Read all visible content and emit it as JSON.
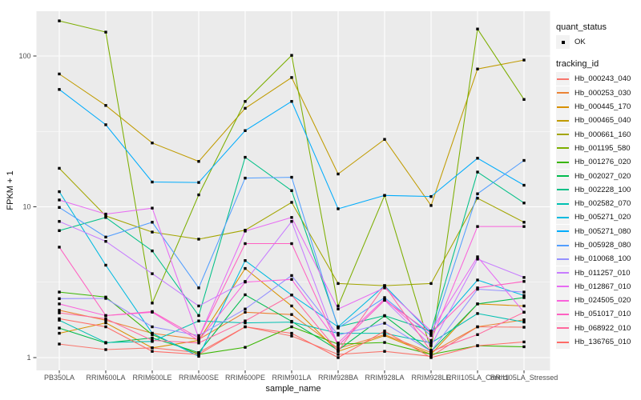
{
  "figure": {
    "background": "#FFFFFF",
    "panel_bg": "#EBEBEB",
    "grid_color": "#FFFFFF",
    "tick_color": "#333333",
    "axis_text_color": "#4D4D4D"
  },
  "legend": {
    "quant_status": {
      "title": "quant_status",
      "items": [
        {
          "label": "OK"
        }
      ]
    },
    "tracking_id": {
      "title": "tracking_id"
    }
  },
  "chart_data": {
    "type": "line",
    "title": "",
    "xlabel": "sample_name",
    "ylabel": "FPKM + 1",
    "yscale": "log10",
    "ylim": [
      0.82,
      200
    ],
    "y_ticks": [
      1,
      10,
      100
    ],
    "y_minor": [
      3.1623,
      31.6228
    ],
    "grid": true,
    "legend_position": "right",
    "point_shape": "square",
    "point_color": "#000000",
    "quant_status_value": "OK",
    "x": [
      "PB350LA",
      "RRIM600LA",
      "RRIM600LE",
      "RRIM600SE",
      "RRIM600PE",
      "RRIM901LA",
      "RRIM928BA",
      "RRIM928LA",
      "RRIM928LE",
      "RRII105LA_Control",
      "RRII105LA_Stressed"
    ],
    "series": [
      {
        "name": "Hb_000243_040",
        "color": "#F8766D",
        "values": [
          1.23,
          1.13,
          1.16,
          1.08,
          1.6,
          1.39,
          1.05,
          1.1,
          1.02,
          1.6,
          1.59
        ]
      },
      {
        "name": "Hb_000253_030",
        "color": "#EB8335",
        "values": [
          2.06,
          1.77,
          1.45,
          1.32,
          2.0,
          1.93,
          1.15,
          1.42,
          1.08,
          1.6,
          1.78
        ]
      },
      {
        "name": "Hb_000445_170",
        "color": "#D89000",
        "values": [
          1.45,
          1.7,
          1.16,
          1.3,
          3.9,
          2.2,
          1.1,
          1.4,
          1.05,
          2.27,
          2.2
        ]
      },
      {
        "name": "Hb_000465_040",
        "color": "#C09B00",
        "values": [
          76,
          47,
          26.5,
          20,
          45,
          72,
          16.5,
          28,
          10.2,
          82,
          94
        ]
      },
      {
        "name": "Hb_000661_160",
        "color": "#A3A500",
        "values": [
          18,
          8.7,
          6.8,
          6.1,
          7.0,
          10.7,
          3.1,
          3.0,
          3.1,
          11.4,
          7.9
        ]
      },
      {
        "name": "Hb_001195_580",
        "color": "#7CAE00",
        "values": [
          171,
          144,
          2.3,
          12,
          50,
          101,
          2.2,
          11.9,
          1.12,
          151,
          51.5
        ]
      },
      {
        "name": "Hb_001276_020",
        "color": "#39B600",
        "values": [
          2.72,
          2.52,
          1.42,
          1.05,
          1.17,
          1.6,
          1.23,
          1.26,
          1.05,
          1.2,
          1.18
        ]
      },
      {
        "name": "Hb_002027_020",
        "color": "#00BB4E",
        "values": [
          1.57,
          1.25,
          1.35,
          1.08,
          2.61,
          1.74,
          1.12,
          1.89,
          1.1,
          2.27,
          2.5
        ]
      },
      {
        "name": "Hb_002228_100",
        "color": "#00C087",
        "values": [
          6.95,
          8.5,
          5.1,
          1.9,
          21.3,
          12.8,
          1.6,
          1.9,
          1.5,
          17,
          10.6
        ]
      },
      {
        "name": "Hb_002582_070",
        "color": "#00C0B2",
        "values": [
          1.77,
          1.26,
          1.28,
          1.75,
          1.7,
          1.72,
          1.45,
          1.45,
          1.25,
          1.96,
          1.72
        ]
      },
      {
        "name": "Hb_005271_020",
        "color": "#00BAE0",
        "values": [
          12.6,
          4.1,
          1.45,
          1.02,
          4.4,
          2.6,
          1.6,
          3.0,
          1.45,
          3.27,
          2.58
        ]
      },
      {
        "name": "Hb_005271_080",
        "color": "#00ACFC",
        "values": [
          60,
          35,
          14.6,
          14.5,
          32,
          50,
          9.7,
          11.9,
          11.7,
          21,
          13.9
        ]
      },
      {
        "name": "Hb_005928_080",
        "color": "#529EFF",
        "values": [
          9.9,
          6.3,
          7.9,
          2.9,
          15.5,
          15.7,
          1.57,
          2.5,
          1.4,
          12.2,
          20.3
        ]
      },
      {
        "name": "Hb_010068_100",
        "color": "#9590FF",
        "values": [
          2.46,
          2.47,
          1.6,
          1.4,
          2.1,
          3.5,
          1.41,
          1.69,
          1.1,
          2.84,
          2.72
        ]
      },
      {
        "name": "Hb_011257_010",
        "color": "#C77CFF",
        "values": [
          8.0,
          5.9,
          3.6,
          2.2,
          3.2,
          8.0,
          1.2,
          2.4,
          1.2,
          4.5,
          3.4
        ]
      },
      {
        "name": "Hb_012867_010",
        "color": "#E76BF3",
        "values": [
          11.1,
          8.95,
          9.8,
          1.35,
          6.9,
          8.5,
          2.1,
          2.9,
          1.5,
          4.66,
          2.0
        ]
      },
      {
        "name": "Hb_024505_020",
        "color": "#FA62DB",
        "values": [
          2.27,
          1.9,
          2.0,
          1.3,
          3.17,
          3.3,
          1.25,
          2.45,
          1.3,
          7.4,
          7.4
        ]
      },
      {
        "name": "Hb_051017_010",
        "color": "#FF61C2",
        "values": [
          5.4,
          1.9,
          2.02,
          1.35,
          5.7,
          5.7,
          1.2,
          2.4,
          1.45,
          2.9,
          3.2
        ]
      },
      {
        "name": "Hb_068922_010",
        "color": "#FF689E",
        "values": [
          1.98,
          1.81,
          1.3,
          1.25,
          1.75,
          2.6,
          1.1,
          3.0,
          1.1,
          1.42,
          2.0
        ]
      },
      {
        "name": "Hb_136765_010",
        "color": "#FF6C67",
        "values": [
          1.81,
          1.6,
          1.1,
          1.05,
          1.6,
          1.45,
          1.0,
          1.5,
          1.0,
          1.2,
          1.27
        ]
      }
    ]
  }
}
